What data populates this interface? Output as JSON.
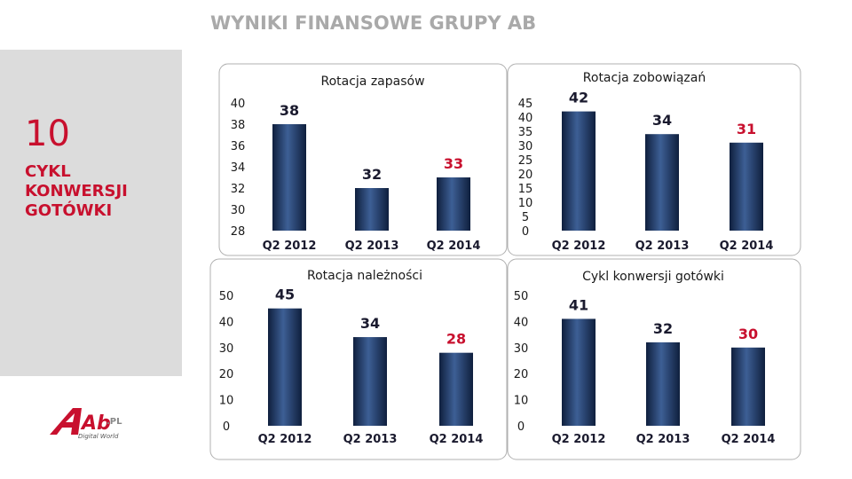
{
  "page": {
    "title": "WYNIKI FINANSOWE GRUPY AB",
    "slide_number": "10",
    "section_title": "CYKL\nKONWERSJI\nGOTÓWKI",
    "logo_text": "Ab",
    "logo_suffix": ".PL",
    "logo_tagline": "Digital World"
  },
  "colors": {
    "accent": "#c8102e",
    "bar": "#1f3864",
    "bar_highlight": "#4a6da7",
    "value_normal": "#1a1a2e",
    "value_highlight": "#c8102e",
    "title_gray": "#a9a9a9",
    "sidebar_gray": "#dcdcdc"
  },
  "chart_data": [
    {
      "type": "bar",
      "title": "Rotacja zapasów",
      "categories": [
        "Q2 2012",
        "Q2 2013",
        "Q2 2014"
      ],
      "values": [
        38,
        32,
        33
      ],
      "value_labels": [
        "38",
        "32",
        "33"
      ],
      "highlight_index": 2,
      "ylim": [
        28,
        40
      ],
      "yticks": [
        "28",
        "30",
        "32",
        "34",
        "36",
        "38",
        "40"
      ],
      "grid": false
    },
    {
      "type": "bar",
      "title": "Rotacja zobowiązań",
      "categories": [
        "Q2 2012",
        "Q2 2013",
        "Q2 2014"
      ],
      "values": [
        42,
        34,
        31
      ],
      "value_labels": [
        "42",
        "34",
        "31"
      ],
      "highlight_index": 2,
      "ylim": [
        0,
        45
      ],
      "yticks": [
        "0",
        "5",
        "10",
        "15",
        "20",
        "25",
        "30",
        "35",
        "40",
        "45"
      ],
      "grid": false
    },
    {
      "type": "bar",
      "title": "Rotacja należności",
      "categories": [
        "Q2 2012",
        "Q2 2013",
        "Q2 2014"
      ],
      "values": [
        45,
        34,
        28
      ],
      "value_labels": [
        "45",
        "34",
        "28"
      ],
      "highlight_index": 2,
      "ylim": [
        0,
        50
      ],
      "yticks": [
        "0",
        "10",
        "20",
        "30",
        "40",
        "50"
      ],
      "grid": false
    },
    {
      "type": "bar",
      "title": "Cykl konwersji gotówki",
      "categories": [
        "Q2 2012",
        "Q2 2013",
        "Q2 2014"
      ],
      "values": [
        41,
        32,
        30
      ],
      "value_labels": [
        "41",
        "32",
        "30"
      ],
      "highlight_index": 2,
      "ylim": [
        0,
        50
      ],
      "yticks": [
        "0",
        "10",
        "20",
        "30",
        "40",
        "50"
      ],
      "grid": false
    }
  ]
}
